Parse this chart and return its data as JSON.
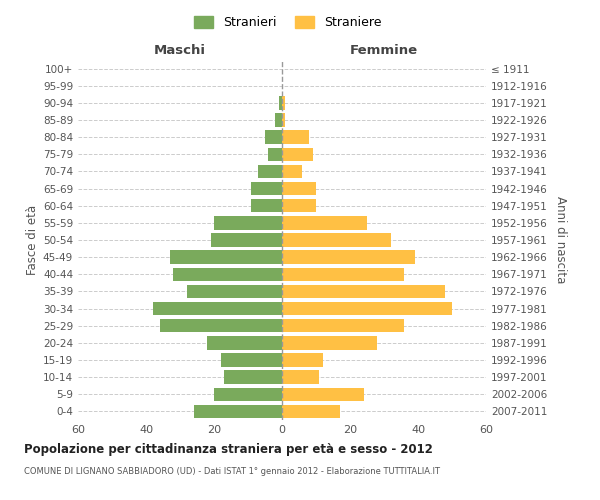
{
  "age_groups": [
    "0-4",
    "5-9",
    "10-14",
    "15-19",
    "20-24",
    "25-29",
    "30-34",
    "35-39",
    "40-44",
    "45-49",
    "50-54",
    "55-59",
    "60-64",
    "65-69",
    "70-74",
    "75-79",
    "80-84",
    "85-89",
    "90-94",
    "95-99",
    "100+"
  ],
  "birth_years": [
    "2007-2011",
    "2002-2006",
    "1997-2001",
    "1992-1996",
    "1987-1991",
    "1982-1986",
    "1977-1981",
    "1972-1976",
    "1967-1971",
    "1962-1966",
    "1957-1961",
    "1952-1956",
    "1947-1951",
    "1942-1946",
    "1937-1941",
    "1932-1936",
    "1927-1931",
    "1922-1926",
    "1917-1921",
    "1912-1916",
    "≤ 1911"
  ],
  "maschi": [
    26,
    20,
    17,
    18,
    22,
    36,
    38,
    28,
    32,
    33,
    21,
    20,
    9,
    9,
    7,
    4,
    5,
    2,
    1,
    0,
    0
  ],
  "femmine": [
    17,
    24,
    11,
    12,
    28,
    36,
    50,
    48,
    36,
    39,
    32,
    25,
    10,
    10,
    6,
    9,
    8,
    1,
    1,
    0,
    0
  ],
  "male_color": "#7aaa5c",
  "female_color": "#ffc044",
  "center_line_color": "#999999",
  "grid_color": "#cccccc",
  "title": "Popolazione per cittadinanza straniera per età e sesso - 2012",
  "subtitle": "COMUNE DI LIGNANO SABBIADORO (UD) - Dati ISTAT 1° gennaio 2012 - Elaborazione TUTTITALIA.IT",
  "xlabel_left": "Maschi",
  "xlabel_right": "Femmine",
  "ylabel_left": "Fasce di età",
  "ylabel_right": "Anni di nascita",
  "legend_stranieri": "Stranieri",
  "legend_straniere": "Straniere",
  "xlim": 60,
  "background_color": "#ffffff"
}
